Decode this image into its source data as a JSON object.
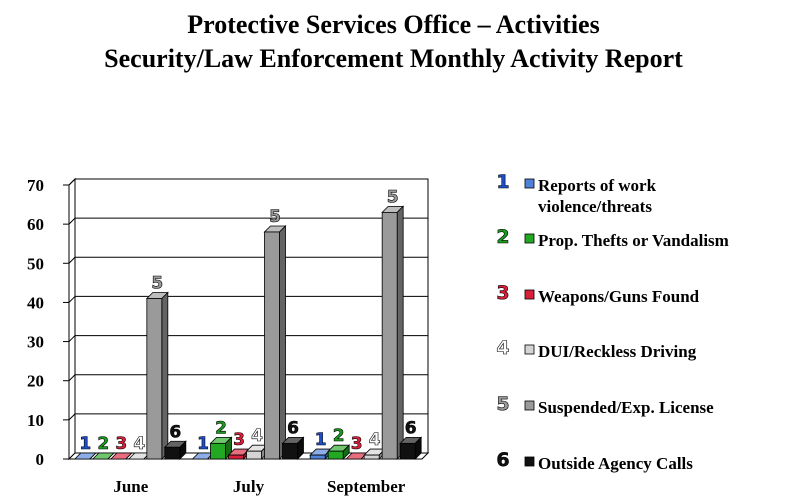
{
  "title": {
    "line1": "Protective Services Office – Activities",
    "line2": "Security/Law Enforcement Monthly Activity Report"
  },
  "chart_data": {
    "type": "bar",
    "title": "Protective Services Office – Activities / Security/Law Enforcement Monthly Activity Report",
    "xlabel": "",
    "ylabel": "",
    "ylim": [
      0,
      70
    ],
    "yticks": [
      0,
      10,
      20,
      30,
      40,
      50,
      60,
      70
    ],
    "categories": [
      "June",
      "July",
      "September"
    ],
    "grid": true,
    "legend_position": "right",
    "series": [
      {
        "id": "1",
        "name": "Reports of work violence/threats",
        "legend_lines": [
          "Reports of work",
          "violence/threats"
        ],
        "color": "#4f81d9",
        "tag_color": "#1f4fc8",
        "values": [
          0,
          0,
          1
        ]
      },
      {
        "id": "2",
        "name": "Prop. Thefts or Vandalism",
        "legend_lines": [
          "Prop. Thefts or Vandalism"
        ],
        "color": "#22a822",
        "tag_color": "#1c9a1c",
        "values": [
          0,
          4,
          2
        ]
      },
      {
        "id": "3",
        "name": "Weapons/Guns Found",
        "legend_lines": [
          "Weapons/Guns Found"
        ],
        "color": "#d8203a",
        "tag_color": "#d8203a",
        "values": [
          0,
          1,
          0
        ]
      },
      {
        "id": "4",
        "name": "DUI/Reckless Driving",
        "legend_lines": [
          "DUI/Reckless Driving"
        ],
        "color": "#d4d4d4",
        "tag_color": "#ffffff",
        "values": [
          0,
          2,
          1
        ]
      },
      {
        "id": "5",
        "name": "Suspended/Exp. License",
        "legend_lines": [
          "Suspended/Exp. License"
        ],
        "color": "#9a9a9a",
        "tag_color": "#9a9a9a",
        "values": [
          41,
          58,
          63
        ]
      },
      {
        "id": "6",
        "name": "Outside Agency Calls",
        "legend_lines": [
          "Outside Agency Calls"
        ],
        "color": "#111111",
        "tag_color": "#111111",
        "values": [
          3,
          4,
          4
        ]
      }
    ]
  }
}
